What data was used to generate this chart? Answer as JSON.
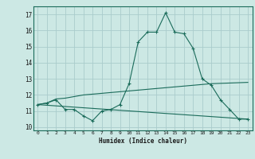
{
  "title": "",
  "xlabel": "Humidex (Indice chaleur)",
  "ylabel": "",
  "background_color": "#cce8e4",
  "grid_color": "#aacccc",
  "line_color": "#1a6b5a",
  "xlim": [
    -0.5,
    23.5
  ],
  "ylim": [
    9.8,
    17.5
  ],
  "yticks": [
    10,
    11,
    12,
    13,
    14,
    15,
    16,
    17
  ],
  "xticks": [
    0,
    1,
    2,
    3,
    4,
    5,
    6,
    7,
    8,
    9,
    10,
    11,
    12,
    13,
    14,
    15,
    16,
    17,
    18,
    19,
    20,
    21,
    22,
    23
  ],
  "series1_x": [
    0,
    1,
    2,
    3,
    4,
    5,
    6,
    7,
    8,
    9,
    10,
    11,
    12,
    13,
    14,
    15,
    16,
    17,
    18,
    19,
    20,
    21,
    22,
    23
  ],
  "series1_y": [
    11.4,
    11.5,
    11.7,
    11.1,
    11.1,
    10.7,
    10.4,
    11.0,
    11.1,
    11.4,
    12.7,
    15.3,
    15.9,
    15.9,
    17.1,
    15.9,
    15.8,
    14.9,
    13.0,
    12.6,
    11.7,
    11.1,
    10.5,
    10.5
  ],
  "series2_x": [
    0,
    1,
    2,
    3,
    4,
    5,
    6,
    7,
    8,
    9,
    10,
    11,
    12,
    13,
    14,
    15,
    16,
    17,
    18,
    19,
    20,
    21,
    22,
    23
  ],
  "series2_y": [
    11.4,
    11.5,
    11.75,
    11.8,
    11.9,
    12.0,
    12.05,
    12.1,
    12.15,
    12.2,
    12.25,
    12.3,
    12.35,
    12.4,
    12.45,
    12.5,
    12.55,
    12.6,
    12.65,
    12.7,
    12.72,
    12.74,
    12.76,
    12.78
  ],
  "series3_x": [
    0,
    23
  ],
  "series3_y": [
    11.4,
    10.5
  ],
  "marker": "+"
}
